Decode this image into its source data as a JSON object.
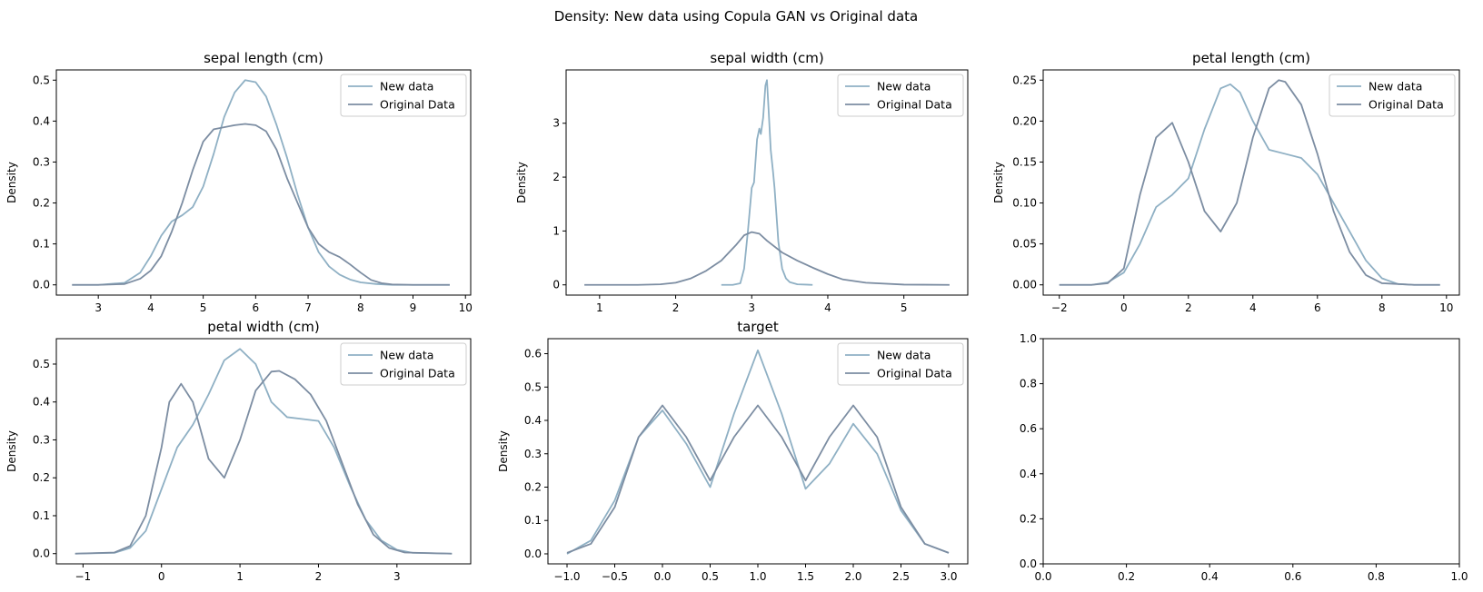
{
  "figure": {
    "suptitle": "Density: New data using Copula GAN vs Original data",
    "colors": {
      "new": "#8fb0c4",
      "original": "#7c8da2"
    }
  },
  "chart_data": [
    {
      "type": "line",
      "title": "sepal length (cm)",
      "xlabel": "",
      "ylabel": "Density",
      "xlim": [
        2.2,
        10.1
      ],
      "ylim": [
        -0.025,
        0.525
      ],
      "xticks": [
        3,
        4,
        5,
        6,
        7,
        8,
        9,
        10
      ],
      "yticks": [
        0.0,
        0.1,
        0.2,
        0.3,
        0.4,
        0.5
      ],
      "ytick_labels": [
        "0.0",
        "0.1",
        "0.2",
        "0.3",
        "0.4",
        "0.5"
      ],
      "legend": "top-right",
      "series": [
        {
          "name": "New data",
          "x": [
            2.5,
            3.0,
            3.5,
            3.8,
            4.0,
            4.2,
            4.4,
            4.6,
            4.8,
            5.0,
            5.2,
            5.4,
            5.6,
            5.8,
            6.0,
            6.2,
            6.4,
            6.6,
            6.8,
            7.0,
            7.2,
            7.4,
            7.6,
            7.8,
            8.0,
            8.3,
            8.6,
            9.0,
            9.7
          ],
          "y": [
            0.0,
            0.0,
            0.005,
            0.03,
            0.07,
            0.12,
            0.155,
            0.17,
            0.19,
            0.24,
            0.32,
            0.41,
            0.47,
            0.5,
            0.495,
            0.46,
            0.39,
            0.31,
            0.22,
            0.14,
            0.08,
            0.045,
            0.025,
            0.013,
            0.006,
            0.002,
            0.0,
            0.0,
            0.0
          ]
        },
        {
          "name": "Original Data",
          "x": [
            2.5,
            3.0,
            3.5,
            3.8,
            4.0,
            4.2,
            4.4,
            4.6,
            4.8,
            5.0,
            5.2,
            5.4,
            5.6,
            5.8,
            6.0,
            6.2,
            6.4,
            6.6,
            6.8,
            7.0,
            7.2,
            7.4,
            7.6,
            7.8,
            8.0,
            8.2,
            8.4,
            8.6,
            9.0,
            9.7
          ],
          "y": [
            0.0,
            0.0,
            0.002,
            0.015,
            0.035,
            0.07,
            0.13,
            0.2,
            0.28,
            0.35,
            0.38,
            0.385,
            0.39,
            0.393,
            0.39,
            0.375,
            0.33,
            0.26,
            0.2,
            0.14,
            0.1,
            0.08,
            0.068,
            0.05,
            0.03,
            0.012,
            0.004,
            0.001,
            0.0,
            0.0
          ]
        }
      ]
    },
    {
      "type": "line",
      "title": "sepal width (cm)",
      "xlabel": "",
      "ylabel": "Density",
      "xlim": [
        0.56,
        5.84
      ],
      "ylim": [
        -0.19,
        3.99
      ],
      "xticks": [
        1,
        2,
        3,
        4,
        5
      ],
      "yticks": [
        0,
        1,
        2,
        3
      ],
      "ytick_labels": [
        "0",
        "1",
        "2",
        "3"
      ],
      "legend": "top-right",
      "series": [
        {
          "name": "New data",
          "x": [
            2.6,
            2.75,
            2.85,
            2.9,
            2.95,
            3.0,
            3.03,
            3.07,
            3.1,
            3.12,
            3.15,
            3.18,
            3.2,
            3.22,
            3.25,
            3.28,
            3.3,
            3.35,
            3.4,
            3.45,
            3.5,
            3.6,
            3.8
          ],
          "y": [
            0.0,
            0.0,
            0.03,
            0.3,
            1.0,
            1.8,
            1.9,
            2.7,
            2.9,
            2.8,
            3.1,
            3.7,
            3.8,
            3.3,
            2.5,
            2.1,
            1.8,
            0.8,
            0.3,
            0.12,
            0.05,
            0.01,
            0.0
          ]
        },
        {
          "name": "Original Data",
          "x": [
            0.8,
            1.5,
            1.8,
            2.0,
            2.2,
            2.4,
            2.6,
            2.8,
            2.9,
            3.0,
            3.1,
            3.2,
            3.4,
            3.6,
            3.8,
            4.0,
            4.2,
            4.5,
            5.0,
            5.6
          ],
          "y": [
            0.0,
            0.0,
            0.01,
            0.04,
            0.12,
            0.26,
            0.45,
            0.75,
            0.92,
            0.98,
            0.95,
            0.82,
            0.6,
            0.45,
            0.32,
            0.2,
            0.1,
            0.04,
            0.005,
            0.0
          ]
        }
      ]
    },
    {
      "type": "line",
      "title": "petal length (cm)",
      "xlabel": "",
      "ylabel": "Density",
      "xlim": [
        -2.5,
        10.4
      ],
      "ylim": [
        -0.0125,
        0.2625
      ],
      "xticks": [
        -2,
        0,
        2,
        4,
        6,
        8,
        10
      ],
      "yticks": [
        0.0,
        0.05,
        0.1,
        0.15,
        0.2,
        0.25
      ],
      "ytick_labels": [
        "0.00",
        "0.05",
        "0.10",
        "0.15",
        "0.20",
        "0.25"
      ],
      "legend": "top-right",
      "series": [
        {
          "name": "New data",
          "x": [
            -2.0,
            -1.0,
            -0.5,
            0.0,
            0.5,
            1.0,
            1.5,
            2.0,
            2.5,
            3.0,
            3.3,
            3.6,
            4.0,
            4.5,
            5.0,
            5.5,
            6.0,
            6.5,
            7.0,
            7.5,
            8.0,
            8.5,
            9.0,
            9.8
          ],
          "y": [
            0.0,
            0.0,
            0.003,
            0.015,
            0.05,
            0.095,
            0.11,
            0.13,
            0.19,
            0.24,
            0.245,
            0.235,
            0.2,
            0.165,
            0.16,
            0.155,
            0.135,
            0.1,
            0.065,
            0.03,
            0.008,
            0.001,
            0.0,
            0.0
          ]
        },
        {
          "name": "Original Data",
          "x": [
            -2.0,
            -1.0,
            -0.5,
            0.0,
            0.5,
            1.0,
            1.5,
            2.0,
            2.5,
            3.0,
            3.5,
            4.0,
            4.5,
            4.8,
            5.0,
            5.5,
            6.0,
            6.5,
            7.0,
            7.5,
            8.0,
            9.0,
            9.8
          ],
          "y": [
            0.0,
            0.0,
            0.002,
            0.02,
            0.11,
            0.18,
            0.198,
            0.15,
            0.09,
            0.065,
            0.1,
            0.18,
            0.24,
            0.25,
            0.248,
            0.22,
            0.16,
            0.09,
            0.04,
            0.012,
            0.002,
            0.0,
            0.0
          ]
        }
      ]
    },
    {
      "type": "line",
      "title": "petal width (cm)",
      "xlabel": "",
      "ylabel": "Density",
      "xlim": [
        -1.34,
        3.94
      ],
      "ylim": [
        -0.027,
        0.567
      ],
      "xticks": [
        -1,
        0,
        1,
        2,
        3
      ],
      "yticks": [
        0.0,
        0.1,
        0.2,
        0.3,
        0.4,
        0.5
      ],
      "ytick_labels": [
        "0.0",
        "0.1",
        "0.2",
        "0.3",
        "0.4",
        "0.5"
      ],
      "legend": "top-right",
      "series": [
        {
          "name": "New data",
          "x": [
            -1.1,
            -0.6,
            -0.4,
            -0.2,
            0.0,
            0.2,
            0.4,
            0.6,
            0.8,
            1.0,
            1.2,
            1.4,
            1.6,
            1.8,
            2.0,
            2.2,
            2.4,
            2.6,
            2.8,
            3.0,
            3.2,
            3.7
          ],
          "y": [
            0.0,
            0.002,
            0.015,
            0.06,
            0.17,
            0.28,
            0.34,
            0.42,
            0.51,
            0.54,
            0.5,
            0.4,
            0.36,
            0.355,
            0.35,
            0.28,
            0.18,
            0.09,
            0.035,
            0.01,
            0.002,
            0.0
          ]
        },
        {
          "name": "Original Data",
          "x": [
            -1.1,
            -0.6,
            -0.4,
            -0.2,
            0.0,
            0.1,
            0.25,
            0.4,
            0.6,
            0.8,
            1.0,
            1.2,
            1.4,
            1.5,
            1.7,
            1.9,
            2.1,
            2.3,
            2.5,
            2.7,
            2.9,
            3.1,
            3.7
          ],
          "y": [
            0.0,
            0.003,
            0.02,
            0.1,
            0.28,
            0.4,
            0.448,
            0.4,
            0.25,
            0.2,
            0.3,
            0.43,
            0.48,
            0.482,
            0.46,
            0.42,
            0.35,
            0.24,
            0.13,
            0.05,
            0.015,
            0.003,
            0.0
          ]
        }
      ]
    },
    {
      "type": "line",
      "title": "target",
      "xlabel": "",
      "ylabel": "Density",
      "xlim": [
        -1.2,
        3.2
      ],
      "ylim": [
        -0.03,
        0.645
      ],
      "xticks": [
        -1.0,
        -0.5,
        0.0,
        0.5,
        1.0,
        1.5,
        2.0,
        2.5,
        3.0
      ],
      "xtick_labels": [
        "−1.0",
        "−0.5",
        "0.0",
        "0.5",
        "1.0",
        "1.5",
        "2.0",
        "2.5",
        "3.0"
      ],
      "yticks": [
        0.0,
        0.1,
        0.2,
        0.3,
        0.4,
        0.5,
        0.6
      ],
      "ytick_labels": [
        "0.0",
        "0.1",
        "0.2",
        "0.3",
        "0.4",
        "0.5",
        "0.6"
      ],
      "legend": "top-right",
      "series": [
        {
          "name": "New data",
          "x": [
            -1.0,
            -0.75,
            -0.5,
            -0.25,
            0.0,
            0.25,
            0.5,
            0.75,
            1.0,
            1.25,
            1.5,
            1.75,
            2.0,
            2.25,
            2.5,
            2.75,
            3.0
          ],
          "y": [
            0.0,
            0.04,
            0.16,
            0.35,
            0.43,
            0.33,
            0.2,
            0.42,
            0.61,
            0.42,
            0.195,
            0.27,
            0.39,
            0.3,
            0.13,
            0.03,
            0.003
          ]
        },
        {
          "name": "Original Data",
          "x": [
            -1.0,
            -0.75,
            -0.5,
            -0.25,
            0.0,
            0.25,
            0.5,
            0.75,
            1.0,
            1.25,
            1.5,
            1.75,
            2.0,
            2.25,
            2.5,
            2.75,
            3.0
          ],
          "y": [
            0.003,
            0.03,
            0.14,
            0.35,
            0.445,
            0.35,
            0.22,
            0.35,
            0.445,
            0.35,
            0.22,
            0.35,
            0.445,
            0.35,
            0.14,
            0.03,
            0.003
          ]
        }
      ]
    },
    {
      "type": "line",
      "title": "",
      "xlabel": "",
      "ylabel": "",
      "xlim": [
        0.0,
        1.0
      ],
      "ylim": [
        0.0,
        1.0
      ],
      "xticks": [
        0.0,
        0.2,
        0.4,
        0.6,
        0.8,
        1.0
      ],
      "xtick_labels": [
        "0.0",
        "0.2",
        "0.4",
        "0.6",
        "0.8",
        "1.0"
      ],
      "yticks": [
        0.0,
        0.2,
        0.4,
        0.6,
        0.8,
        1.0
      ],
      "ytick_labels": [
        "0.0",
        "0.2",
        "0.4",
        "0.6",
        "0.8",
        "1.0"
      ],
      "legend": "",
      "series": []
    }
  ]
}
